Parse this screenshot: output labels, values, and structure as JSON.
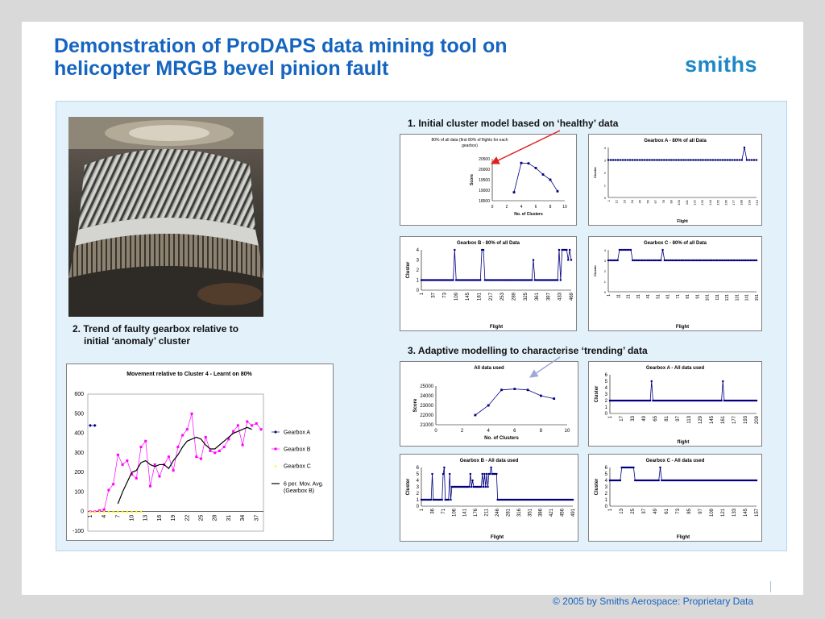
{
  "title_line1": "Demonstration of ProDAPS data mining tool on",
  "title_line2": "helicopter MRGB bevel pinion fault",
  "logo": "smiths",
  "caption1": "1. Initial cluster model based on ‘healthy’ data",
  "caption2_line1": "2. Trend of faulty gearbox relative to",
  "caption2_line2": "initial ‘anomaly’ cluster",
  "caption3": "3. Adaptive modelling to characterise ‘trending’ data",
  "footer": "© 2005 by Smiths Aerospace: Proprietary Data",
  "colors": {
    "title": "#1565c0",
    "panel": "#e3f1fb",
    "series": "#000080",
    "arrow_red": "#e02020",
    "arrow_blue": "#9fa8d8"
  },
  "chart_data": [
    {
      "id": "score_80",
      "type": "line",
      "title": "80% of all data (first 80% of flights for each gearbox)",
      "title_line1": "80% of all data (first 80% of flights for each",
      "title_line2": "gearbox)",
      "xlabel": "No. of Clusters",
      "ylabel": "Score",
      "xlim": [
        0,
        10
      ],
      "ylim": [
        18500,
        20500
      ],
      "xticks": [
        "0",
        "2",
        "4",
        "6",
        "8",
        "10"
      ],
      "yticks": [
        "18500",
        "19000",
        "19500",
        "20000",
        "20500"
      ],
      "x": [
        3,
        4,
        5,
        6,
        7,
        8,
        9
      ],
      "values": [
        18900,
        20300,
        20280,
        20060,
        19750,
        19500,
        18950
      ]
    },
    {
      "id": "gbA_80",
      "type": "scatter",
      "title": "Gearbox A - 80% of all Data",
      "xlabel": "Flight",
      "ylabel": "Cluster",
      "ylim": [
        0,
        4
      ],
      "yticks": [
        "0",
        "1",
        "2",
        "3",
        "4"
      ],
      "n": 62,
      "baseline": 3,
      "spikes": [
        [
          56,
          4
        ]
      ],
      "xticks": [
        "1",
        "12",
        "23",
        "34",
        "45",
        "56",
        "67",
        "78",
        "89",
        "100",
        "111",
        "122",
        "133",
        "144",
        "155",
        "166",
        "177",
        "188",
        "199",
        "210"
      ]
    },
    {
      "id": "gbB_80",
      "type": "scatter",
      "title": "Gearbox B - 80% of all Data",
      "xlabel": "Flight",
      "ylabel": "Cluster",
      "ylim": [
        0,
        4
      ],
      "yticks": [
        "0",
        "1",
        "2",
        "3",
        "4"
      ],
      "n": 100,
      "baseline": 1,
      "spikes": [
        [
          22,
          4
        ],
        [
          40,
          4
        ],
        [
          41,
          4
        ],
        [
          74,
          3
        ],
        [
          91,
          4
        ],
        [
          93,
          4
        ],
        [
          94,
          4
        ],
        [
          95,
          4
        ],
        [
          96,
          4
        ],
        [
          97,
          3
        ],
        [
          98,
          4
        ],
        [
          99,
          3
        ]
      ],
      "xticks": [
        "1",
        "37",
        "73",
        "109",
        "145",
        "181",
        "217",
        "253",
        "289",
        "325",
        "361",
        "397",
        "433",
        "469"
      ]
    },
    {
      "id": "gbC_80",
      "type": "scatter",
      "title": "Gearbox C - 80% of all Data",
      "xlabel": "Flight",
      "ylabel": "Cluster",
      "ylim": [
        0,
        4
      ],
      "yticks": [
        "0",
        "1",
        "2",
        "3",
        "4"
      ],
      "n": 80,
      "baseline": 3,
      "spikes": [
        [
          6,
          4
        ],
        [
          7,
          4
        ],
        [
          8,
          4
        ],
        [
          9,
          4
        ],
        [
          10,
          4
        ],
        [
          11,
          4
        ],
        [
          12,
          4
        ],
        [
          29,
          4
        ]
      ],
      "xticks": [
        "1",
        "11",
        "21",
        "31",
        "41",
        "51",
        "61",
        "71",
        "81",
        "91",
        "101",
        "111",
        "121",
        "131",
        "141",
        "151"
      ]
    },
    {
      "id": "movement",
      "type": "line",
      "title": "Movement relative to Cluster 4 - Learnt on 80%",
      "ylim": [
        -100,
        600
      ],
      "yticks": [
        "600",
        "500",
        "400",
        "300",
        "200",
        "100",
        "0",
        "-100"
      ],
      "xticks": [
        "1",
        "4",
        "7",
        "10",
        "13",
        "16",
        "19",
        "22",
        "25",
        "28",
        "31",
        "34",
        "37"
      ],
      "series": [
        {
          "name": "Gearbox A",
          "values": [
            440,
            440
          ]
        },
        {
          "name": "Gearbox B",
          "values": [
            0,
            0,
            5,
            10,
            110,
            140,
            290,
            240,
            260,
            190,
            170,
            330,
            360,
            130,
            240,
            180,
            240,
            280,
            210,
            330,
            390,
            420,
            500,
            280,
            270,
            380,
            310,
            300,
            310,
            330,
            370,
            410,
            440,
            340,
            460,
            440,
            450,
            420
          ]
        },
        {
          "name": "Gearbox C",
          "values": [
            0,
            0,
            0,
            0,
            0,
            0,
            0,
            0,
            0,
            0,
            0,
            0
          ]
        },
        {
          "name": "6 per. Mov. Avg. (Gearbox B)",
          "name_line1": "6 per. Mov. Avg.",
          "name_line2": "(Gearbox B)",
          "start": 6,
          "values": [
            40,
            100,
            150,
            200,
            210,
            250,
            260,
            240,
            230,
            240,
            240,
            220,
            260,
            290,
            330,
            360,
            370,
            380,
            370,
            340,
            320,
            320,
            340,
            360,
            380,
            400,
            410,
            420,
            430,
            420
          ]
        }
      ]
    },
    {
      "id": "score_all",
      "type": "line",
      "title": "All data used",
      "xlabel": "No. of Clusters",
      "ylabel": "Score",
      "xlim": [
        0,
        10
      ],
      "ylim": [
        21000,
        25000
      ],
      "xticks": [
        "0",
        "2",
        "4",
        "6",
        "8",
        "10"
      ],
      "yticks": [
        "21000",
        "22000",
        "23000",
        "24000",
        "25000"
      ],
      "x": [
        3,
        4,
        5,
        6,
        7,
        8,
        9
      ],
      "values": [
        22000,
        23000,
        24600,
        24700,
        24600,
        24000,
        23700
      ]
    },
    {
      "id": "gbA_all",
      "type": "scatter",
      "title": "Gearbox A - All data used",
      "xlabel": "flight",
      "ylabel": "Cluster",
      "ylim": [
        0,
        6
      ],
      "yticks": [
        "0",
        "1",
        "2",
        "3",
        "4",
        "5",
        "6"
      ],
      "n": 110,
      "baseline": 2,
      "spikes": [
        [
          31,
          5
        ],
        [
          84,
          5
        ]
      ],
      "xticks": [
        "1",
        "17",
        "33",
        "49",
        "65",
        "81",
        "97",
        "113",
        "129",
        "145",
        "161",
        "177",
        "193",
        "209"
      ]
    },
    {
      "id": "gbB_all",
      "type": "scatter",
      "title": "Gearbox B - All data used",
      "xlabel": "Flight",
      "ylabel": "Cluster",
      "ylim": [
        0,
        6
      ],
      "yticks": [
        "0",
        "1",
        "2",
        "3",
        "4",
        "5",
        "6"
      ],
      "n": 140,
      "baseline": 1,
      "spikes": [
        [
          10,
          5
        ],
        [
          20,
          5
        ],
        [
          21,
          6
        ],
        [
          26,
          5
        ],
        [
          45,
          5
        ],
        [
          47,
          4
        ],
        [
          56,
          5
        ],
        [
          58,
          5
        ],
        [
          60,
          5
        ],
        [
          62,
          5
        ],
        [
          64,
          6
        ]
      ],
      "blocks": [
        [
          28,
          62,
          3
        ],
        [
          62,
          70,
          5
        ]
      ],
      "xticks": [
        "1",
        "36",
        "71",
        "106",
        "141",
        "176",
        "211",
        "246",
        "281",
        "316",
        "351",
        "386",
        "421",
        "456",
        "491"
      ]
    },
    {
      "id": "gbC_all",
      "type": "scatter",
      "title": "Gearbox C - All data used",
      "xlabel": "Flight",
      "ylabel": "Cluster",
      "ylim": [
        0,
        6
      ],
      "yticks": [
        "0",
        "1",
        "2",
        "3",
        "4",
        "5",
        "6"
      ],
      "n": 100,
      "baseline": 4,
      "spikes": [
        [
          8,
          6
        ],
        [
          9,
          6
        ],
        [
          10,
          6
        ],
        [
          11,
          6
        ],
        [
          12,
          6
        ],
        [
          13,
          6
        ],
        [
          14,
          6
        ],
        [
          15,
          6
        ],
        [
          16,
          6
        ],
        [
          34,
          6
        ]
      ],
      "xticks": [
        "1",
        "13",
        "25",
        "37",
        "49",
        "61",
        "73",
        "85",
        "97",
        "109",
        "121",
        "133",
        "145",
        "157"
      ]
    }
  ]
}
